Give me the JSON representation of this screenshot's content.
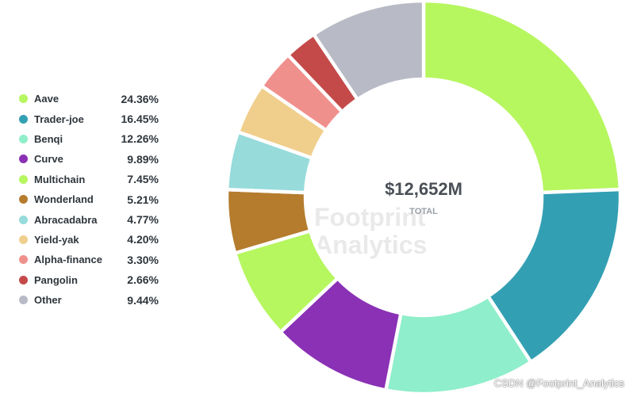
{
  "chart_data": {
    "type": "pie",
    "variant": "donut",
    "legend_position": "left",
    "center": {
      "value": "$12,652M",
      "label": "TOTAL"
    },
    "slices": [
      {
        "name": "Aave",
        "percent_label": "24.36%",
        "value": 24.36,
        "color": "#b6f65f"
      },
      {
        "name": "Trader-joe",
        "percent_label": "16.45%",
        "value": 16.45,
        "color": "#339fb3"
      },
      {
        "name": "Benqi",
        "percent_label": "12.26%",
        "value": 12.26,
        "color": "#8feecb"
      },
      {
        "name": "Curve",
        "percent_label": "9.89%",
        "value": 9.89,
        "color": "#8a31b5"
      },
      {
        "name": "Multichain",
        "percent_label": "7.45%",
        "value": 7.45,
        "color": "#b6f65f"
      },
      {
        "name": "Wonderland",
        "percent_label": "5.21%",
        "value": 5.21,
        "color": "#b57c2e"
      },
      {
        "name": "Abracadabra",
        "percent_label": "4.77%",
        "value": 4.77,
        "color": "#97dbdb"
      },
      {
        "name": "Yield-yak",
        "percent_label": "4.20%",
        "value": 4.2,
        "color": "#f0cf8d"
      },
      {
        "name": "Alpha-finance",
        "percent_label": "3.30%",
        "value": 3.3,
        "color": "#f0908d"
      },
      {
        "name": "Pangolin",
        "percent_label": "2.66%",
        "value": 2.66,
        "color": "#c44a4a"
      },
      {
        "name": "Other",
        "percent_label": "9.44%",
        "value": 9.44,
        "color": "#b8bac5"
      }
    ]
  },
  "watermark": {
    "line1": "Footprint",
    "line2": "Analytics"
  },
  "credit": "CSDN @Footprint_Analytics"
}
